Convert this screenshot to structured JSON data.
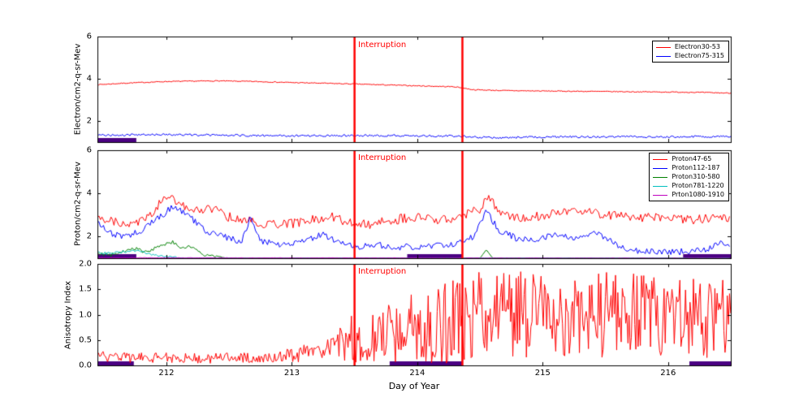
{
  "figure": {
    "background": "#ffffff"
  },
  "colors": {
    "axis": "#000000",
    "interruption_line": "#ff0000",
    "interruption_text": "#ff0000",
    "gap_bar": "#4b0082"
  },
  "chart_data": [
    {
      "type": "line",
      "panel": "electron-flux",
      "ylabel": "Electron/cm2-q-sr-Mev",
      "ylim": [
        1,
        6
      ],
      "ytick_values": [
        2,
        4,
        6
      ],
      "ytick_labels": [
        "2",
        "4",
        "6"
      ],
      "xlim": [
        211.45,
        216.5
      ],
      "xtick_values": [
        212,
        213,
        214,
        215,
        216
      ],
      "xtick_labels": [
        "212",
        "213",
        "214",
        "215",
        "216"
      ],
      "show_xtick_labels": false,
      "show_legend": true,
      "legend_position": "upper right",
      "interruption_label": "Interruption",
      "interruption_x": [
        213.5,
        214.36
      ],
      "gap_bars": [
        [
          211.45,
          211.76
        ]
      ],
      "series": [
        {
          "name": "Electron30-53",
          "color": "#ff0000",
          "step": 0.01,
          "noise": 0.022,
          "trend": [
            [
              211.45,
              3.72
            ],
            [
              211.7,
              3.8
            ],
            [
              212.0,
              3.87
            ],
            [
              212.4,
              3.9
            ],
            [
              212.7,
              3.87
            ],
            [
              213.0,
              3.82
            ],
            [
              213.3,
              3.78
            ],
            [
              213.5,
              3.75
            ],
            [
              213.8,
              3.7
            ],
            [
              214.1,
              3.65
            ],
            [
              214.3,
              3.62
            ],
            [
              214.45,
              3.48
            ],
            [
              214.7,
              3.44
            ],
            [
              215.0,
              3.42
            ],
            [
              215.4,
              3.4
            ],
            [
              215.8,
              3.38
            ],
            [
              216.2,
              3.36
            ],
            [
              216.5,
              3.32
            ]
          ]
        },
        {
          "name": "Electron75-315",
          "color": "#0000ff",
          "step": 0.01,
          "noise": 0.05,
          "trend": [
            [
              211.45,
              1.32
            ],
            [
              212.0,
              1.36
            ],
            [
              212.5,
              1.32
            ],
            [
              213.0,
              1.3
            ],
            [
              213.5,
              1.32
            ],
            [
              214.0,
              1.3
            ],
            [
              214.35,
              1.28
            ],
            [
              214.6,
              1.2
            ],
            [
              215.0,
              1.24
            ],
            [
              215.5,
              1.26
            ],
            [
              216.0,
              1.25
            ],
            [
              216.5,
              1.27
            ]
          ]
        }
      ]
    },
    {
      "type": "line",
      "panel": "proton-flux",
      "ylabel": "Proton/cm2-q-sr-Mev",
      "ylim": [
        1,
        6
      ],
      "ytick_values": [
        2,
        4,
        6
      ],
      "ytick_labels": [
        "2",
        "4",
        "6"
      ],
      "xlim": [
        211.45,
        216.5
      ],
      "xtick_values": [
        212,
        213,
        214,
        215,
        216
      ],
      "xtick_labels": [
        "212",
        "213",
        "214",
        "215",
        "216"
      ],
      "show_xtick_labels": false,
      "show_legend": true,
      "legend_position": "upper right",
      "interruption_label": "Interruption",
      "interruption_x": [
        213.5,
        214.36
      ],
      "gap_bars": [
        [
          211.45,
          211.76
        ],
        [
          213.92,
          214.36
        ],
        [
          216.12,
          216.5
        ]
      ],
      "series": [
        {
          "name": "Proton47-65",
          "color": "#ff0000",
          "step": 0.012,
          "noise": 0.22,
          "trend": [
            [
              211.45,
              2.95
            ],
            [
              211.6,
              2.7
            ],
            [
              211.75,
              2.55
            ],
            [
              211.9,
              3.2
            ],
            [
              212.0,
              3.85
            ],
            [
              212.1,
              3.6
            ],
            [
              212.2,
              3.2
            ],
            [
              212.35,
              3.35
            ],
            [
              212.5,
              2.9
            ],
            [
              212.65,
              2.75
            ],
            [
              212.8,
              2.55
            ],
            [
              213.0,
              2.6
            ],
            [
              213.15,
              2.75
            ],
            [
              213.3,
              2.95
            ],
            [
              213.45,
              2.65
            ],
            [
              213.6,
              2.55
            ],
            [
              213.75,
              2.7
            ],
            [
              213.9,
              2.85
            ],
            [
              214.05,
              2.9
            ],
            [
              214.2,
              2.75
            ],
            [
              214.35,
              2.95
            ],
            [
              214.5,
              3.3
            ],
            [
              214.57,
              3.9
            ],
            [
              214.65,
              3.1
            ],
            [
              214.8,
              2.85
            ],
            [
              215.0,
              2.95
            ],
            [
              215.15,
              3.1
            ],
            [
              215.3,
              3.2
            ],
            [
              215.45,
              3.05
            ],
            [
              215.6,
              2.95
            ],
            [
              215.8,
              2.9
            ],
            [
              216.0,
              2.85
            ],
            [
              216.2,
              2.8
            ],
            [
              216.35,
              2.85
            ],
            [
              216.5,
              2.8
            ]
          ]
        },
        {
          "name": "Proton112-187",
          "color": "#0000ff",
          "step": 0.012,
          "noise": 0.15,
          "trend": [
            [
              211.45,
              2.7
            ],
            [
              211.55,
              2.2
            ],
            [
              211.65,
              1.95
            ],
            [
              211.8,
              2.3
            ],
            [
              211.95,
              2.9
            ],
            [
              212.05,
              3.4
            ],
            [
              212.15,
              3.1
            ],
            [
              212.3,
              2.3
            ],
            [
              212.45,
              2.0
            ],
            [
              212.6,
              1.75
            ],
            [
              212.67,
              2.95
            ],
            [
              212.75,
              1.8
            ],
            [
              212.9,
              1.65
            ],
            [
              213.1,
              1.8
            ],
            [
              213.25,
              2.1
            ],
            [
              213.4,
              1.65
            ],
            [
              213.55,
              1.55
            ],
            [
              213.7,
              1.6
            ],
            [
              213.85,
              1.5
            ],
            [
              214.0,
              1.55
            ],
            [
              214.15,
              1.6
            ],
            [
              214.3,
              1.65
            ],
            [
              214.45,
              2.0
            ],
            [
              214.55,
              3.2
            ],
            [
              214.65,
              2.3
            ],
            [
              214.8,
              1.9
            ],
            [
              214.95,
              1.85
            ],
            [
              215.1,
              2.15
            ],
            [
              215.25,
              1.9
            ],
            [
              215.4,
              2.2
            ],
            [
              215.5,
              2.0
            ],
            [
              215.6,
              1.55
            ],
            [
              215.75,
              1.35
            ],
            [
              215.9,
              1.3
            ],
            [
              216.1,
              1.3
            ],
            [
              216.3,
              1.35
            ],
            [
              216.42,
              1.7
            ],
            [
              216.5,
              1.45
            ]
          ]
        },
        {
          "name": "Proton310-580",
          "color": "#008000",
          "step": 0.012,
          "noise": [
            [
              211.45,
              0.1
            ],
            [
              212.4,
              0.06
            ],
            [
              212.5,
              0.01
            ],
            [
              216.5,
              0.01
            ]
          ],
          "trend": [
            [
              211.45,
              1.25
            ],
            [
              211.55,
              1.15
            ],
            [
              211.65,
              1.3
            ],
            [
              211.75,
              1.45
            ],
            [
              211.85,
              1.25
            ],
            [
              211.95,
              1.6
            ],
            [
              212.05,
              1.75
            ],
            [
              212.12,
              1.45
            ],
            [
              212.2,
              1.55
            ],
            [
              212.3,
              1.15
            ],
            [
              212.4,
              1.05
            ],
            [
              212.5,
              1.0
            ],
            [
              214.5,
              1.0
            ],
            [
              214.55,
              1.4
            ],
            [
              214.6,
              1.0
            ],
            [
              216.5,
              1.0
            ]
          ]
        },
        {
          "name": "Proton781-1220",
          "color": "#00bfbf",
          "step": 0.012,
          "noise": [
            [
              211.45,
              0.07
            ],
            [
              212.1,
              0.03
            ],
            [
              212.25,
              0.01
            ],
            [
              216.5,
              0.01
            ]
          ],
          "trend": [
            [
              211.45,
              1.3
            ],
            [
              211.55,
              1.2
            ],
            [
              211.65,
              1.3
            ],
            [
              211.78,
              1.35
            ],
            [
              211.9,
              1.15
            ],
            [
              212.0,
              1.08
            ],
            [
              212.1,
              1.03
            ],
            [
              212.2,
              1.0
            ],
            [
              216.5,
              1.0
            ]
          ]
        },
        {
          "name": "Prton1080-1910",
          "color": "#bf00bf",
          "step": 0.012,
          "noise": 0.01,
          "trend": [
            [
              211.45,
              1.02
            ],
            [
              216.5,
              1.0
            ]
          ]
        }
      ]
    },
    {
      "type": "line",
      "panel": "anisotropy",
      "ylabel": "Anisotropy Index",
      "xlabel": "Day of Year",
      "ylim": [
        0,
        2
      ],
      "ytick_values": [
        0,
        0.5,
        1,
        1.5,
        2
      ],
      "ytick_labels": [
        "0.0",
        "0.5",
        "1.0",
        "1.5",
        "2.0"
      ],
      "xlim": [
        211.45,
        216.5
      ],
      "xtick_values": [
        212,
        213,
        214,
        215,
        216
      ],
      "xtick_labels": [
        "212",
        "213",
        "214",
        "215",
        "216"
      ],
      "show_xtick_labels": true,
      "show_legend": false,
      "interruption_label": "Interruption",
      "interruption_x": [
        213.5,
        214.36
      ],
      "gap_bars": [
        [
          211.45,
          211.74
        ],
        [
          213.78,
          214.36
        ],
        [
          216.17,
          216.5
        ]
      ],
      "series": [
        {
          "name": "Anisotropy Index",
          "color": "#ff0000",
          "step": 0.009,
          "noise": [
            [
              211.45,
              0.1
            ],
            [
              212.8,
              0.1
            ],
            [
              213.0,
              0.14
            ],
            [
              213.2,
              0.2
            ],
            [
              213.35,
              0.3
            ],
            [
              213.5,
              0.5
            ],
            [
              213.7,
              0.55
            ],
            [
              213.9,
              0.68
            ],
            [
              214.1,
              0.75
            ],
            [
              214.35,
              0.85
            ],
            [
              214.6,
              0.85
            ],
            [
              215.5,
              0.85
            ],
            [
              216.0,
              0.8
            ],
            [
              216.5,
              0.78
            ]
          ],
          "trend": [
            [
              211.45,
              0.18
            ],
            [
              211.7,
              0.15
            ],
            [
              212.0,
              0.15
            ],
            [
              212.4,
              0.14
            ],
            [
              212.8,
              0.16
            ],
            [
              213.0,
              0.2
            ],
            [
              213.2,
              0.28
            ],
            [
              213.35,
              0.38
            ],
            [
              213.5,
              0.55
            ],
            [
              213.65,
              0.6
            ],
            [
              213.8,
              0.65
            ],
            [
              213.95,
              0.75
            ],
            [
              214.1,
              0.8
            ],
            [
              214.25,
              0.85
            ],
            [
              214.35,
              0.95
            ],
            [
              214.5,
              1.0
            ],
            [
              214.8,
              1.0
            ],
            [
              215.2,
              1.0
            ],
            [
              215.6,
              1.0
            ],
            [
              216.0,
              0.95
            ],
            [
              216.3,
              0.92
            ],
            [
              216.5,
              0.9
            ]
          ]
        }
      ]
    }
  ]
}
